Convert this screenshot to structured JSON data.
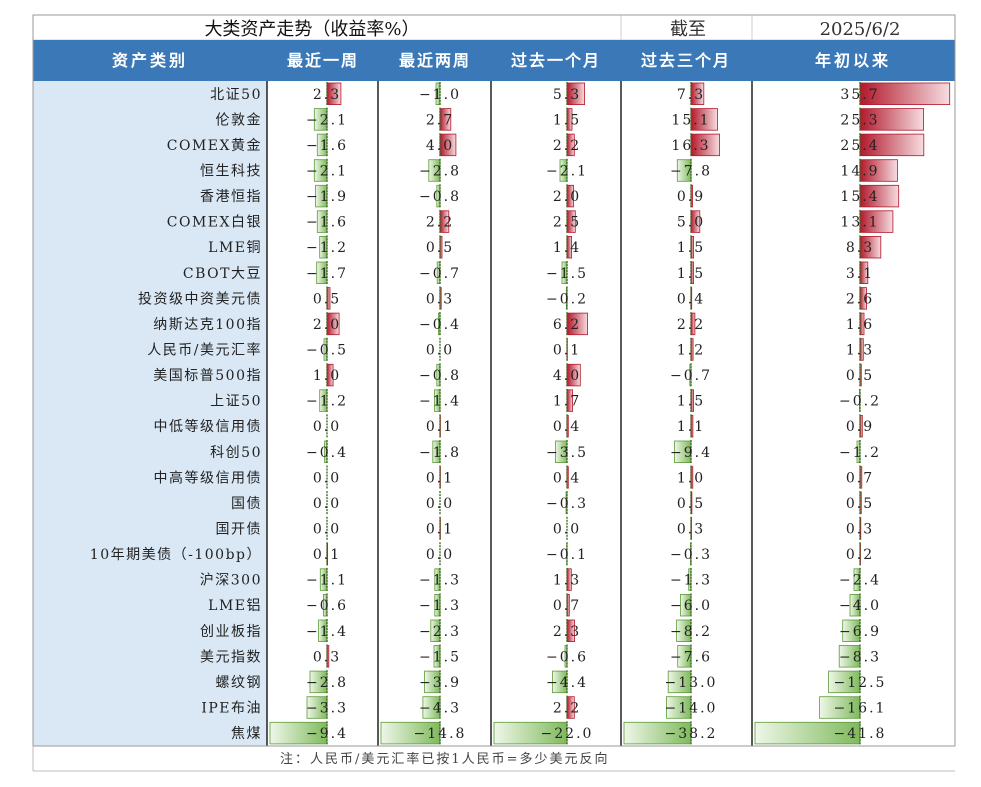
{
  "title": "大类资产走势（收益率%）",
  "as_of_label": "截至",
  "as_of_date": "2025/6/2",
  "header": {
    "category": "资产类别",
    "periods": [
      "最近一周",
      "最近两周",
      "过去一个月",
      "过去三个月",
      "年初以来"
    ]
  },
  "footnote": "注：人民币/美元汇率已按1人民币=多少美元反向",
  "colors": {
    "header_bg": "#3a78b8",
    "header_text": "#ffffff",
    "label_bg": "#dae8f5",
    "positive": "#b2182b",
    "negative": "#8cc06a",
    "zero_line": "#3c6e22"
  },
  "chart_data": {
    "type": "table",
    "title": "大类资产走势（收益率%）",
    "columns": [
      "最近一周",
      "最近两周",
      "过去一个月",
      "过去三个月",
      "年初以来"
    ],
    "rows": [
      {
        "asset": "北证50",
        "values": [
          2.3,
          -1.0,
          5.3,
          7.3,
          35.7
        ]
      },
      {
        "asset": "伦敦金",
        "values": [
          -2.1,
          2.7,
          1.5,
          15.1,
          25.3
        ]
      },
      {
        "asset": "COMEX黄金",
        "values": [
          -1.6,
          4.0,
          2.2,
          16.3,
          25.4
        ]
      },
      {
        "asset": "恒生科技",
        "values": [
          -2.1,
          -2.8,
          -2.1,
          -7.8,
          14.9
        ]
      },
      {
        "asset": "香港恒指",
        "values": [
          -1.9,
          -0.8,
          2.0,
          0.9,
          15.4
        ]
      },
      {
        "asset": "COMEX白银",
        "values": [
          -1.6,
          2.2,
          2.5,
          5.0,
          13.1
        ]
      },
      {
        "asset": "LME铜",
        "values": [
          -1.2,
          0.5,
          1.4,
          1.5,
          8.3
        ]
      },
      {
        "asset": "CBOT大豆",
        "values": [
          -1.7,
          -0.7,
          -1.5,
          1.5,
          3.1
        ]
      },
      {
        "asset": "投资级中资美元债",
        "values": [
          0.5,
          0.3,
          -0.2,
          0.4,
          2.6
        ]
      },
      {
        "asset": "纳斯达克100指",
        "values": [
          2.0,
          -0.4,
          6.2,
          2.2,
          1.6
        ]
      },
      {
        "asset": "人民币/美元汇率",
        "values": [
          -0.5,
          0.0,
          0.1,
          1.2,
          1.3
        ]
      },
      {
        "asset": "美国标普500指",
        "values": [
          1.0,
          -0.8,
          4.0,
          -0.7,
          0.5
        ]
      },
      {
        "asset": "上证50",
        "values": [
          -1.2,
          -1.4,
          1.7,
          1.5,
          -0.2
        ]
      },
      {
        "asset": "中低等级信用债",
        "values": [
          0.0,
          0.1,
          0.4,
          1.1,
          0.9
        ]
      },
      {
        "asset": "科创50",
        "values": [
          -0.4,
          -1.8,
          -3.5,
          -9.4,
          -1.2
        ]
      },
      {
        "asset": "中高等级信用债",
        "values": [
          0.0,
          0.1,
          0.4,
          1.0,
          0.7
        ]
      },
      {
        "asset": "国债",
        "values": [
          0.0,
          0.0,
          -0.3,
          0.5,
          0.5
        ]
      },
      {
        "asset": "国开债",
        "values": [
          0.0,
          0.1,
          0.0,
          0.3,
          0.3
        ]
      },
      {
        "asset": "10年期美债（-100bp）",
        "values": [
          0.1,
          0.0,
          -0.1,
          -0.3,
          0.2
        ]
      },
      {
        "asset": "沪深300",
        "values": [
          -1.1,
          -1.3,
          1.3,
          -1.3,
          -2.4
        ]
      },
      {
        "asset": "LME铝",
        "values": [
          -0.6,
          -1.3,
          0.7,
          -6.0,
          -4.0
        ]
      },
      {
        "asset": "创业板指",
        "values": [
          -1.4,
          -2.3,
          2.3,
          -8.2,
          -6.9
        ]
      },
      {
        "asset": "美元指数",
        "values": [
          0.3,
          -1.5,
          -0.6,
          -7.6,
          -8.3
        ]
      },
      {
        "asset": "螺纹钢",
        "values": [
          -2.8,
          -3.9,
          -4.4,
          -13.0,
          -12.5
        ]
      },
      {
        "asset": "IPE布油",
        "values": [
          -3.3,
          -4.3,
          2.2,
          -14.0,
          -16.1
        ]
      },
      {
        "asset": "焦煤",
        "values": [
          -9.4,
          -14.8,
          -22.0,
          -38.2,
          -41.8
        ]
      }
    ]
  }
}
